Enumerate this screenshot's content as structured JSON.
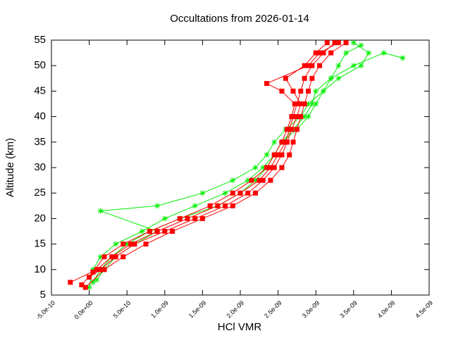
{
  "chart_data": {
    "type": "line",
    "title": "Occultations from 2026-01-14",
    "x_label": "HCl VMR",
    "y_label": "Altitude (km)",
    "xlim": [
      -5e-10,
      4.5e-09
    ],
    "ylim": [
      5,
      55
    ],
    "xticks": [
      {
        "value": -5e-10,
        "label": "-5.0e-10"
      },
      {
        "value": 0,
        "label": "0.0e+00"
      },
      {
        "value": 5e-10,
        "label": "5.0e-10"
      },
      {
        "value": 1e-09,
        "label": "1.0e-09"
      },
      {
        "value": 1.5e-09,
        "label": "1.5e-09"
      },
      {
        "value": 2e-09,
        "label": "2.0e-09"
      },
      {
        "value": 2.5e-09,
        "label": "2.5e-09"
      },
      {
        "value": 3e-09,
        "label": "3.0e-09"
      },
      {
        "value": 3.5e-09,
        "label": "3.5e-09"
      },
      {
        "value": 4e-09,
        "label": "4.0e-09"
      },
      {
        "value": 4.5e-09,
        "label": "4.5e-09"
      }
    ],
    "yticks": [
      5,
      10,
      15,
      20,
      25,
      30,
      35,
      40,
      45,
      50,
      55
    ],
    "series": [
      {
        "color": "#00ee00",
        "marker": "star",
        "x": [
          0.0,
          5e-11,
          1.5e-10,
          3.5e-10,
          7e-10,
          1e-09,
          1.4e-09,
          1.8e-09,
          2.1e-09,
          2.3e-09,
          2.45e-09,
          2.55e-09,
          2.7e-09,
          2.85e-09,
          2.95e-09,
          3e-09,
          3.2e-09,
          3.5e-09,
          3.9e-09,
          4.15e-09
        ],
        "values": [
          6.5,
          10,
          12.5,
          15,
          17.5,
          20,
          22.5,
          25,
          27.5,
          30,
          32.5,
          35,
          37.5,
          40,
          42.5,
          45,
          47.5,
          50,
          52.5,
          51.5
        ]
      },
      {
        "color": "#00ee00",
        "marker": "star",
        "x": [
          1e-10,
          2e-10,
          3.5e-10,
          6e-10,
          9e-10,
          1.5e-10,
          9e-10,
          1.5e-09,
          1.9e-09,
          2.2e-09,
          2.35e-09,
          2.45e-09,
          2.6e-09,
          2.8e-09,
          2.9e-09,
          3.1e-09,
          3.3e-09,
          3.6e-09,
          3.7e-09,
          3.5e-09
        ],
        "values": [
          8,
          10,
          12.5,
          15,
          17.5,
          21.5,
          22.5,
          25,
          27.5,
          30,
          32.5,
          35,
          37.5,
          40,
          42.5,
          45,
          47.5,
          50,
          52.5,
          54.5
        ]
      },
      {
        "color": "#00ee00",
        "marker": "star",
        "x": [
          5e-11,
          1.5e-10,
          3e-10,
          5e-10,
          8e-10,
          1.2e-09,
          1.7e-09,
          2e-09,
          2.2e-09,
          2.35e-09,
          2.45e-09,
          2.55e-09,
          2.75e-09,
          2.9e-09,
          3e-09,
          3.1e-09,
          3.2e-09,
          3.3e-09,
          3.4e-09,
          3.6e-09
        ],
        "values": [
          7.5,
          10,
          12.5,
          15,
          17.5,
          20,
          22.5,
          25,
          27.5,
          30,
          32.5,
          35,
          37.5,
          40,
          42.5,
          45,
          47.5,
          50,
          52.5,
          54
        ]
      },
      {
        "color": "#ff0000",
        "marker": "square",
        "x": [
          -2.5e-10,
          1e-10,
          3e-10,
          5.5e-10,
          9e-10,
          1.3e-09,
          1.7e-09,
          2e-09,
          2.25e-09,
          2.4e-09,
          2.5e-09,
          2.6e-09,
          2.65e-09,
          2.7e-09,
          2.75e-09,
          2.8e-09,
          2.85e-09,
          2.95e-09,
          3.1e-09,
          3.25e-09
        ],
        "values": [
          7.5,
          10,
          12.5,
          15,
          17.5,
          20,
          22.5,
          25,
          27.5,
          30,
          32.5,
          35,
          37.5,
          40,
          42.5,
          45,
          47.5,
          50,
          52.5,
          54.5
        ]
      },
      {
        "color": "#ff0000",
        "marker": "square",
        "x": [
          -5e-11,
          2e-10,
          4.5e-10,
          7.5e-10,
          1.1e-09,
          1.5e-09,
          1.9e-09,
          2.2e-09,
          2.4e-09,
          2.55e-09,
          2.65e-09,
          2.7e-09,
          2.75e-09,
          2.8e-09,
          2.85e-09,
          2.9e-09,
          2.95e-09,
          3.05e-09,
          3.2e-09,
          3.4e-09
        ],
        "values": [
          6.5,
          10,
          12.5,
          15,
          17.5,
          20,
          22.5,
          25,
          27.5,
          30,
          32.5,
          35,
          37.5,
          40,
          42.5,
          45,
          47.5,
          50,
          52.5,
          54.5
        ]
      },
      {
        "color": "#ff0000",
        "marker": "square",
        "x": [
          0.0,
          1.5e-10,
          3.5e-10,
          6e-10,
          1e-09,
          1.4e-09,
          1.8e-09,
          2.1e-09,
          2.3e-09,
          2.45e-09,
          2.55e-09,
          2.62e-09,
          2.68e-09,
          2.75e-09,
          2.8e-09,
          2.7e-09,
          2.6e-09,
          2.85e-09,
          3e-09,
          3.15e-09
        ],
        "values": [
          8.5,
          10,
          12.5,
          15,
          17.5,
          20,
          22.5,
          25,
          27.5,
          30,
          32.5,
          35,
          37.5,
          40,
          42.5,
          45,
          47.5,
          50,
          52.5,
          54.5
        ]
      },
      {
        "color": "#ff0000",
        "marker": "square",
        "x": [
          -1e-10,
          5e-11,
          2e-10,
          4.5e-10,
          8e-10,
          1.2e-09,
          1.6e-09,
          1.9e-09,
          2.15e-09,
          2.35e-09,
          2.45e-09,
          2.55e-09,
          2.62e-09,
          2.68e-09,
          2.72e-09,
          2.55e-09,
          2.35e-09,
          2.9e-09,
          3.05e-09,
          3.3e-09
        ],
        "values": [
          7,
          9.5,
          12.5,
          15,
          17.5,
          20,
          22.5,
          25,
          27.5,
          30,
          32.5,
          35,
          37.5,
          40,
          42.5,
          45,
          46.5,
          50,
          52.5,
          54.5
        ]
      }
    ]
  }
}
